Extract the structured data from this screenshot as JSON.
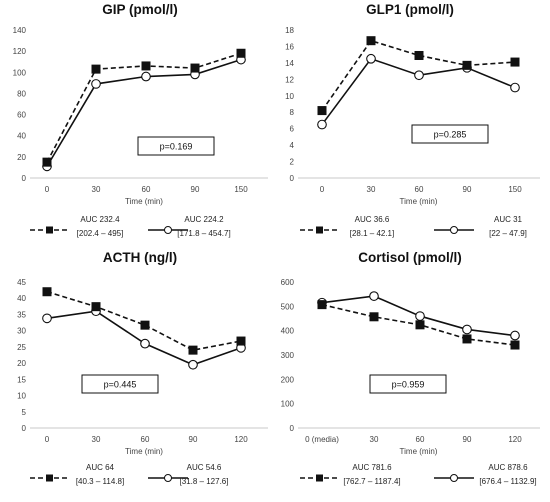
{
  "chart_data": [
    {
      "type": "line",
      "title": "GIP (pmol/l)",
      "xlabel": "Time (min)",
      "ylabel": "",
      "categories": [
        "0",
        "30",
        "60",
        "90",
        "150"
      ],
      "ylim": [
        0,
        140
      ],
      "yticks": [
        "0",
        "20",
        "40",
        "60",
        "80",
        "100",
        "120",
        "140"
      ],
      "grid": false,
      "p_value": "p=0.169",
      "series": [
        {
          "style": "dashed-filled-square",
          "values": [
            15,
            103,
            106,
            104,
            118
          ],
          "legend": [
            "AUC 232.4",
            "[202.4 – 495]"
          ]
        },
        {
          "style": "solid-open-circle",
          "values": [
            11,
            89,
            96,
            98,
            112
          ],
          "legend": [
            "AUC 224.2",
            "[171.8 – 454.7]"
          ]
        }
      ]
    },
    {
      "type": "line",
      "title": "GLP1 (pmol/l)",
      "xlabel": "Time (min)",
      "ylabel": "",
      "categories": [
        "0",
        "30",
        "60",
        "90",
        "150"
      ],
      "ylim": [
        0,
        18
      ],
      "yticks": [
        "0",
        "2",
        "4",
        "6",
        "8",
        "10",
        "12",
        "14",
        "16",
        "18"
      ],
      "grid": false,
      "p_value": "p=0.285",
      "series": [
        {
          "style": "dashed-filled-square",
          "values": [
            8.2,
            16.7,
            14.9,
            13.7,
            14.1
          ],
          "legend": [
            "AUC 36.6",
            "[28.1 – 42.1]"
          ]
        },
        {
          "style": "solid-open-circle",
          "values": [
            6.5,
            14.5,
            12.5,
            13.4,
            11.0
          ],
          "legend": [
            "AUC 31",
            "[22 – 47.9]"
          ]
        }
      ]
    },
    {
      "type": "line",
      "title": "ACTH (ng/l)",
      "xlabel": "Time (min)",
      "ylabel": "",
      "categories": [
        "0",
        "30",
        "60",
        "90",
        "120"
      ],
      "ylim": [
        0,
        45
      ],
      "yticks": [
        "0",
        "5",
        "10",
        "15",
        "20",
        "25",
        "30",
        "35",
        "40",
        "45"
      ],
      "grid": false,
      "p_value": "p=0.445",
      "series": [
        {
          "style": "dashed-filled-square",
          "values": [
            42,
            37.4,
            31.7,
            24,
            26.8
          ],
          "legend": [
            "AUC 64",
            "[40.3 – 114.8]"
          ]
        },
        {
          "style": "solid-open-circle",
          "values": [
            33.8,
            36,
            26,
            19.5,
            24.7
          ],
          "legend": [
            "AUC 54.6",
            "[31.8 – 127.6]"
          ]
        }
      ]
    },
    {
      "type": "line",
      "title": "Cortisol (pmol/l)",
      "xlabel": "Time (min)",
      "ylabel": "",
      "categories": [
        "0 (media)",
        "30",
        "60",
        "90",
        "120"
      ],
      "ylim": [
        0,
        600
      ],
      "yticks": [
        "0",
        "100",
        "200",
        "300",
        "400",
        "500",
        "600"
      ],
      "grid": false,
      "p_value": "p=0.959",
      "series": [
        {
          "style": "dashed-filled-square",
          "values": [
            507,
            457,
            424,
            366,
            341
          ],
          "legend": [
            "AUC 781.6",
            "[762.7 – 1187.4]"
          ]
        },
        {
          "style": "solid-open-circle",
          "values": [
            515,
            542,
            460,
            405,
            380
          ],
          "legend": [
            "AUC 878.6",
            "[676.4 – 1132.9]"
          ]
        }
      ]
    }
  ]
}
